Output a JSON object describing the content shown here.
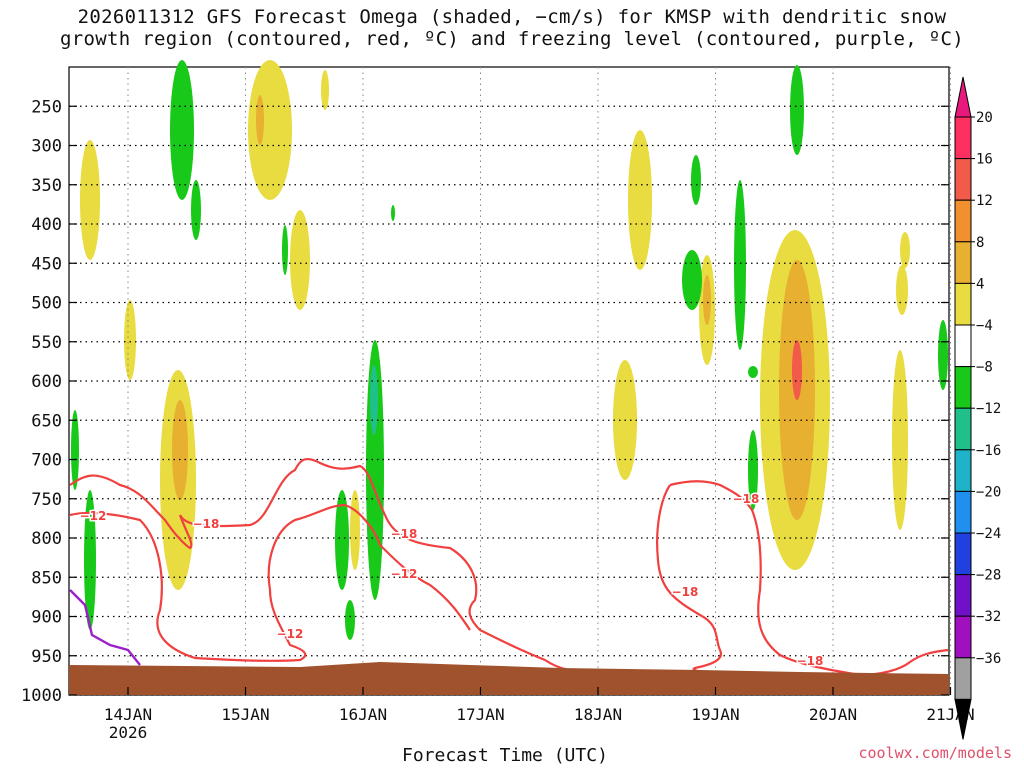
{
  "chart_data": {
    "type": "heatmap",
    "title_line1": "2026011312 GFS Forecast Omega (shaded, −cm/s) for KMSP with dendritic snow",
    "title_line2": "growth region (contoured, red, ºC) and freezing level (contoured, purple, ºC)",
    "xlabel": "Forecast Time (UTC)",
    "x_ticks": [
      "14JAN",
      "15JAN",
      "16JAN",
      "17JAN",
      "18JAN",
      "19JAN",
      "20JAN",
      "21JAN"
    ],
    "x_year_label": "2026",
    "y_ticks": [
      250,
      300,
      350,
      400,
      450,
      500,
      550,
      600,
      650,
      700,
      750,
      800,
      850,
      900,
      950,
      1000
    ],
    "y_range": [
      200,
      1000
    ],
    "grid": true,
    "colorbar": {
      "labels": [
        "20",
        "16",
        "12",
        "8",
        "4",
        "−4",
        "−8",
        "−12",
        "−16",
        "−20",
        "−24",
        "−28",
        "−32",
        "−36"
      ],
      "colors": [
        "#ff3060",
        "#f25a4a",
        "#f29030",
        "#e8b030",
        "#e8dc40",
        "#ffffff",
        "#19c919",
        "#20c08a",
        "#1fb3c9",
        "#2090f0",
        "#2040e0",
        "#7010c8",
        "#a010c0",
        "#a0a0a0"
      ],
      "top_arrow_color": "#e8187c",
      "bottom_arrow_color": "#000000"
    },
    "contour_labels_red": [
      "−12",
      "−18",
      "−12",
      "−18",
      "−12",
      "−18",
      "−18",
      "−18"
    ],
    "terrain_color": "#a0522d"
  },
  "credit": "coolwx.com/models"
}
